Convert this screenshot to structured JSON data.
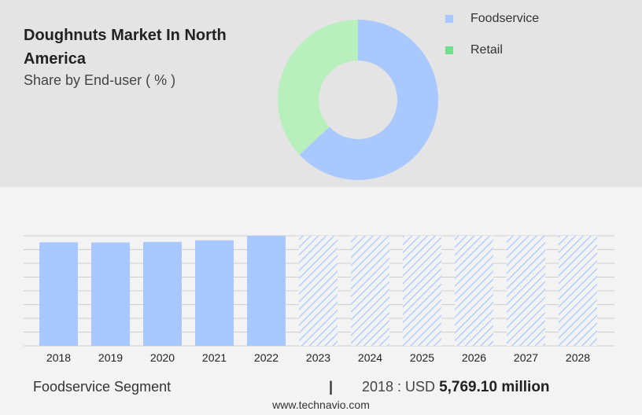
{
  "header": {
    "title": "Doughnuts Market In North America",
    "subtitle": "Share by End-user ( % )"
  },
  "legend": [
    {
      "label": "Foodservice",
      "color": "#a8c8ff"
    },
    {
      "label": "Retail",
      "color": "#72e08a"
    }
  ],
  "colors": {
    "foodservice": "#a8c8ff",
    "retail": "#b7f0bc",
    "forecast_hatch": "#a8c8ff",
    "top_panel": "#e4e4e4",
    "background": "#f3f3f3"
  },
  "chart_data": [
    {
      "type": "pie",
      "style": "donut",
      "labels": [
        "Foodservice",
        "Retail"
      ],
      "values": [
        63,
        37
      ]
    },
    {
      "type": "bar",
      "categories": [
        "2018",
        "2019",
        "2020",
        "2021",
        "2022",
        "2023",
        "2024",
        "2025",
        "2026",
        "2027",
        "2028"
      ],
      "values": [
        5769.1,
        5760,
        5790,
        5880,
        6130,
        null,
        null,
        null,
        null,
        null,
        null
      ],
      "forecast_from": "2023",
      "forecast_style": "hatched",
      "grid": true
    }
  ],
  "footer": {
    "segment": "Foodservice Segment",
    "divider": "|",
    "stat_prefix": "2018 : USD",
    "stat_value": "5,769.10 million",
    "site": "www.technavio.com"
  }
}
